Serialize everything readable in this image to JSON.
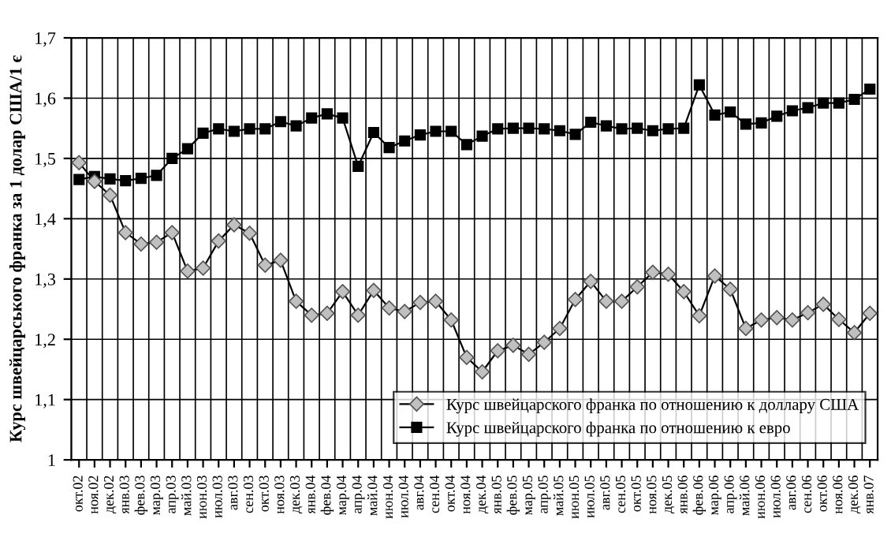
{
  "chart_data": {
    "type": "line",
    "ylabel": "Курс швейцарського франка за 1 долар США/1 є",
    "categories": [
      "окт.02",
      "ноя.02",
      "дек.02",
      "янв.03",
      "фев.03",
      "мар.03",
      "апр.03",
      "май.03",
      "июн.03",
      "июл.03",
      "авг.03",
      "сен.03",
      "окт.03",
      "ноя.03",
      "дек.03",
      "янв.04",
      "фев.04",
      "мар.04",
      "апр.04",
      "май.04",
      "июн.04",
      "июл.04",
      "авг.04",
      "сен.04",
      "окт.04",
      "ноя.04",
      "дек.04",
      "янв.05",
      "фев.05",
      "мар.05",
      "апр.05",
      "май.05",
      "июн.05",
      "июл.05",
      "авг.05",
      "сен.05",
      "окт.05",
      "ноя.05",
      "дек.05",
      "янв.06",
      "фев.06",
      "мар.06",
      "апр.06",
      "май.06",
      "июн.06",
      "июл.06",
      "авг.06",
      "сен.06",
      "окт.06",
      "ноя.06",
      "дек.06",
      "янв.07"
    ],
    "series": [
      {
        "name": "Курс швейцарского франка по отношению к доллару США",
        "color": "#c0c0c0",
        "marker": "diamond",
        "values": [
          1.493,
          1.462,
          1.439,
          1.377,
          1.358,
          1.361,
          1.377,
          1.313,
          1.318,
          1.363,
          1.39,
          1.376,
          1.323,
          1.331,
          1.263,
          1.24,
          1.243,
          1.279,
          1.24,
          1.281,
          1.252,
          1.246,
          1.261,
          1.263,
          1.232,
          1.17,
          1.146,
          1.181,
          1.19,
          1.175,
          1.195,
          1.218,
          1.266,
          1.296,
          1.263,
          1.263,
          1.287,
          1.311,
          1.308,
          1.279,
          1.239,
          1.305,
          1.283,
          1.218,
          1.232,
          1.236,
          1.232,
          1.244,
          1.258,
          1.233,
          1.211,
          1.243
        ]
      },
      {
        "name": "Курс швейцарского франка по отношению к евро",
        "color": "#000000",
        "marker": "square",
        "values": [
          1.465,
          1.47,
          1.466,
          1.463,
          1.467,
          1.472,
          1.5,
          1.516,
          1.542,
          1.549,
          1.545,
          1.549,
          1.549,
          1.561,
          1.554,
          1.567,
          1.574,
          1.567,
          1.487,
          1.543,
          1.518,
          1.529,
          1.539,
          1.545,
          1.545,
          1.523,
          1.537,
          1.549,
          1.55,
          1.55,
          1.549,
          1.546,
          1.54,
          1.56,
          1.554,
          1.549,
          1.55,
          1.546,
          1.549,
          1.55,
          1.622,
          1.572,
          1.577,
          1.557,
          1.559,
          1.57,
          1.579,
          1.584,
          1.592,
          1.592,
          1.598,
          1.615
        ]
      }
    ],
    "ylim": [
      1,
      1.7
    ],
    "yticks": [
      1,
      {
        "value": 1.1,
        "label": "1,1"
      },
      {
        "value": 1.2,
        "label": "1,2"
      },
      {
        "value": 1.3,
        "label": "1,3"
      },
      {
        "value": 1.4,
        "label": "1,4"
      },
      {
        "value": 1.5,
        "label": "1,5"
      },
      {
        "value": 1.6,
        "label": "1,6"
      },
      {
        "value": 1.7,
        "label": "1,7"
      }
    ],
    "grid": true,
    "legend": "bottom right"
  }
}
